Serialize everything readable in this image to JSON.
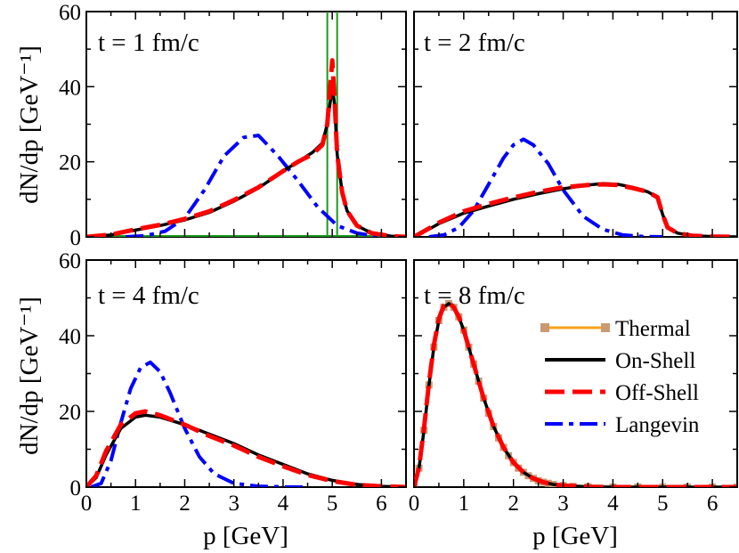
{
  "chart_data": {
    "type": "line",
    "xlabel": "p [GeV]",
    "ylabel": "dN/dp [GeV⁻¹]",
    "xlim": [
      0,
      6.5
    ],
    "ylim": [
      0,
      60
    ],
    "x_ticks": [
      "0",
      "1",
      "2",
      "3",
      "4",
      "5",
      "6"
    ],
    "y_ticks": [
      "0",
      "20",
      "40",
      "60"
    ],
    "legend": [
      {
        "name": "Thermal",
        "style": "orange-squares",
        "color": "#f5a21b",
        "marker_color": "#c99a74"
      },
      {
        "name": "On-Shell",
        "style": "solid",
        "color": "#000000"
      },
      {
        "name": "Off-Shell",
        "style": "dashed",
        "color": "#ff0000"
      },
      {
        "name": "Langevin",
        "style": "dash-dot",
        "color": "#0000ff"
      }
    ],
    "panels": [
      {
        "label": "t = 1 fm/c",
        "initial_delta": [
          4.9,
          5.1
        ],
        "series": [
          {
            "name": "On-Shell",
            "x": [
              0,
              0.5,
              1,
              1.5,
              2,
              2.5,
              3,
              3.5,
              4,
              4.3,
              4.6,
              4.8,
              4.9,
              5.0,
              5.05,
              5.1,
              5.2,
              5.3,
              5.5,
              5.8,
              6.2,
              6.5
            ],
            "y": [
              0,
              0.5,
              1.8,
              3.0,
              4.5,
              6.5,
              9.5,
              13,
              17.5,
              20,
              22.5,
              25,
              30,
              40,
              35,
              22,
              12,
              7,
              3,
              1,
              0.2,
              0
            ]
          },
          {
            "name": "Off-Shell",
            "x": [
              0,
              0.5,
              1,
              1.5,
              2,
              2.5,
              3,
              3.5,
              4,
              4.3,
              4.6,
              4.8,
              4.9,
              5.0,
              5.05,
              5.1,
              5.2,
              5.3,
              5.5,
              5.8,
              6.2,
              6.5
            ],
            "y": [
              0,
              0.6,
              2.0,
              3.2,
              4.8,
              6.8,
              9.8,
              13.2,
              17.5,
              20,
              22,
              24.5,
              30,
              47,
              36,
              22,
              12,
              7,
              3,
              1,
              0.2,
              0
            ]
          },
          {
            "name": "Langevin",
            "x": [
              0.8,
              1.2,
              1.6,
              2.0,
              2.4,
              2.8,
              3.2,
              3.5,
              3.9,
              4.3,
              4.7,
              5.1,
              5.5,
              5.9,
              6.3
            ],
            "y": [
              0,
              0.3,
              1.5,
              5,
              12.5,
              21.5,
              26.5,
              27,
              21.5,
              15,
              8,
              3,
              1,
              0.2,
              0
            ]
          }
        ]
      },
      {
        "label": "t = 2 fm/c",
        "series": [
          {
            "name": "On-Shell",
            "x": [
              0,
              0.2,
              0.5,
              1,
              1.5,
              2,
              2.5,
              3,
              3.5,
              3.8,
              4.1,
              4.4,
              4.7,
              4.9,
              5.0,
              5.1,
              5.3,
              5.6,
              6.0,
              6.5
            ],
            "y": [
              0,
              1.3,
              3.5,
              6.3,
              8.2,
              10,
              11.5,
              12.8,
              13.8,
              14.2,
              14,
              13.2,
              12,
              10.5,
              6,
              2.5,
              1,
              0.3,
              0.1,
              0
            ]
          },
          {
            "name": "Off-Shell",
            "x": [
              0,
              0.2,
              0.5,
              1,
              1.5,
              2,
              2.5,
              3,
              3.5,
              3.8,
              4.1,
              4.4,
              4.7,
              4.9,
              5.0,
              5.1,
              5.3,
              5.6,
              6.0,
              6.5
            ],
            "y": [
              0,
              1.5,
              3.8,
              6.8,
              8.8,
              10.5,
              12,
              13.2,
              13.8,
              14,
              13.8,
              13,
              12,
              10.5,
              6,
              2.5,
              1,
              0.3,
              0.1,
              0
            ]
          },
          {
            "name": "Langevin",
            "x": [
              0.3,
              0.6,
              0.9,
              1.2,
              1.5,
              1.8,
              2.0,
              2.2,
              2.4,
              2.7,
              3.0,
              3.4,
              3.8,
              4.2,
              4.6,
              5.0
            ],
            "y": [
              0,
              0.5,
              2.5,
              7,
              14,
              21,
              24.5,
              26,
              24.5,
              19.5,
              12.5,
              5.5,
              2,
              0.5,
              0.1,
              0
            ]
          }
        ]
      },
      {
        "label": "t = 4 fm/c",
        "series": [
          {
            "name": "On-Shell",
            "x": [
              0,
              0.2,
              0.4,
              0.7,
              1.0,
              1.2,
              1.5,
              2.0,
              2.5,
              3.0,
              3.5,
              4.0,
              4.5,
              5.0,
              5.5,
              6.0,
              6.5
            ],
            "y": [
              0,
              2.5,
              8.5,
              15.5,
              18.5,
              19,
              18.5,
              16.5,
              14,
              11.5,
              8.5,
              6,
              3.5,
              1.8,
              0.7,
              0.2,
              0
            ]
          },
          {
            "name": "Off-Shell",
            "x": [
              0,
              0.2,
              0.4,
              0.7,
              1.0,
              1.2,
              1.5,
              2.0,
              2.5,
              3.0,
              3.5,
              4.0,
              4.5,
              5.0,
              5.5,
              6.0,
              6.5
            ],
            "y": [
              0,
              3,
              9.5,
              16.5,
              19.5,
              20,
              19,
              16.5,
              13.5,
              11,
              8,
              5.5,
              3.2,
              1.6,
              0.6,
              0.2,
              0
            ]
          },
          {
            "name": "Langevin",
            "x": [
              0.1,
              0.3,
              0.5,
              0.7,
              0.9,
              1.1,
              1.3,
              1.5,
              1.7,
              2.0,
              2.3,
              2.6,
              3.0,
              3.5,
              4.0,
              4.5
            ],
            "y": [
              0,
              1,
              7,
              17,
              26,
              31.5,
              33,
              30.5,
              25,
              15.5,
              8,
              3.5,
              1,
              0.2,
              0.05,
              0
            ]
          }
        ]
      },
      {
        "label": "t = 8 fm/c",
        "series": [
          {
            "name": "Thermal",
            "x": [
              0,
              0.1,
              0.2,
              0.3,
              0.4,
              0.5,
              0.6,
              0.7,
              0.8,
              0.9,
              1.0,
              1.1,
              1.2,
              1.3,
              1.4,
              1.5,
              1.6,
              1.7,
              1.8,
              1.9,
              2.0,
              2.1,
              2.2,
              2.3,
              2.4,
              2.5,
              2.6,
              2.7,
              2.8,
              3.0,
              3.2,
              3.5,
              4.0,
              4.5,
              5.0,
              5.5,
              6.0,
              6.5
            ],
            "y": [
              0,
              5,
              15,
              27,
              37,
              44,
              47.5,
              48.5,
              47.5,
              45,
              41.5,
              37,
              32.5,
              28,
              23.5,
              19.5,
              16,
              13,
              10.5,
              8.3,
              6.5,
              5,
              3.9,
              3,
              2.3,
              1.7,
              1.3,
              1,
              0.7,
              0.4,
              0.2,
              0.1,
              0,
              0,
              0,
              0,
              0,
              0
            ]
          },
          {
            "name": "On-Shell",
            "x": [
              0,
              0.1,
              0.2,
              0.3,
              0.4,
              0.5,
              0.6,
              0.7,
              0.8,
              0.9,
              1.0,
              1.2,
              1.4,
              1.6,
              1.8,
              2.0,
              2.2,
              2.4,
              2.6,
              2.8,
              3.0,
              3.5,
              4.0,
              5.0,
              6.5
            ],
            "y": [
              0,
              5,
              15,
              27,
              37,
              44,
              47.5,
              48.5,
              47.5,
              45,
              41.5,
              32.5,
              23.5,
              16,
              10.5,
              6.5,
              3.9,
              2.3,
              1.3,
              0.7,
              0.4,
              0.1,
              0,
              0,
              0
            ]
          },
          {
            "name": "Off-Shell",
            "x": [
              0,
              0.1,
              0.2,
              0.3,
              0.4,
              0.5,
              0.6,
              0.7,
              0.8,
              0.9,
              1.0,
              1.2,
              1.4,
              1.6,
              1.8,
              2.0,
              2.2,
              2.4,
              2.6,
              2.8,
              3.0,
              3.5,
              4.0,
              5.0,
              6.5
            ],
            "y": [
              0,
              5.2,
              15.5,
              27.5,
              37.5,
              44.5,
              48,
              48.8,
              47.5,
              45,
              41.5,
              32.5,
              23.5,
              16,
              10.5,
              6.5,
              3.9,
              2.3,
              1.3,
              0.7,
              0.4,
              0.1,
              0,
              0,
              0
            ]
          }
        ]
      }
    ]
  }
}
